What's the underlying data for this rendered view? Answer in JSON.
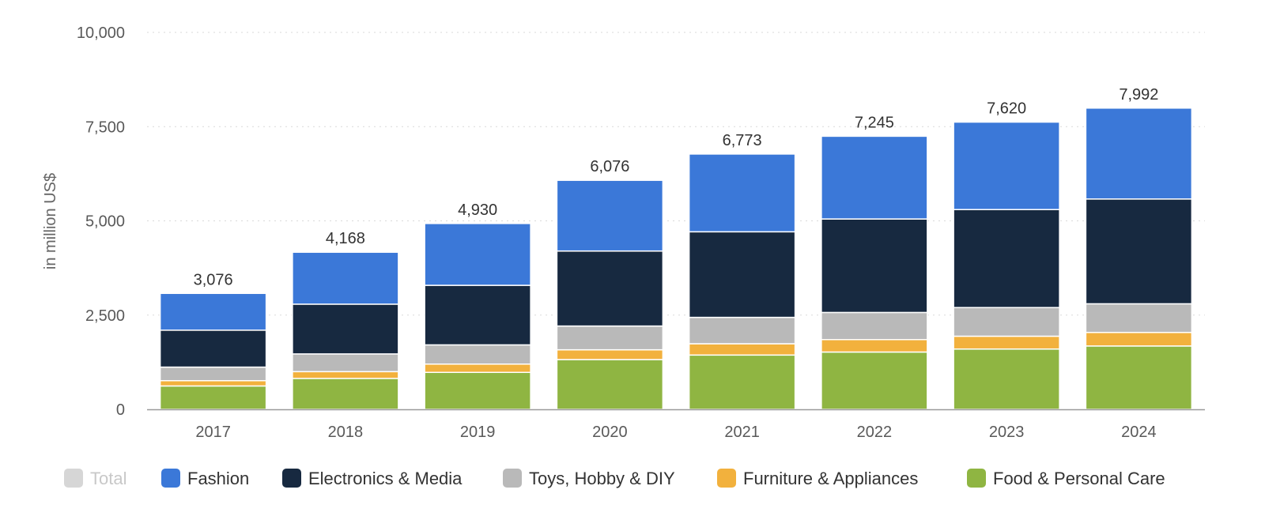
{
  "chart_data": {
    "type": "bar",
    "stacked": true,
    "title": "",
    "xlabel": "",
    "ylabel": "in million US$",
    "ylim": [
      0,
      10000
    ],
    "y_ticks": [
      0,
      2500,
      5000,
      7500,
      10000
    ],
    "y_tick_labels": [
      "0",
      "2,500",
      "5,000",
      "7,500",
      "10,000"
    ],
    "categories": [
      "2017",
      "2018",
      "2019",
      "2020",
      "2021",
      "2022",
      "2023",
      "2024"
    ],
    "series": [
      {
        "name": "Food & Personal Care",
        "color": "#8fb542",
        "values": [
          620,
          820,
          980,
          1320,
          1440,
          1520,
          1600,
          1680
        ]
      },
      {
        "name": "Furniture & Appliances",
        "color": "#f2b13d",
        "values": [
          140,
          180,
          220,
          260,
          300,
          330,
          340,
          360
        ]
      },
      {
        "name": "Toys, Hobby & DIY",
        "color": "#b9b9b9",
        "values": [
          360,
          470,
          510,
          630,
          700,
          720,
          760,
          760
        ]
      },
      {
        "name": "Electronics & Media",
        "color": "#172940",
        "values": [
          980,
          1320,
          1580,
          1990,
          2270,
          2480,
          2600,
          2780
        ]
      },
      {
        "name": "Fashion",
        "color": "#3b78d8",
        "values": [
          976,
          1378,
          1640,
          1876,
          2063,
          2195,
          2320,
          2412
        ]
      }
    ],
    "totals": [
      3076,
      4168,
      4930,
      6076,
      6773,
      7245,
      7620,
      7992
    ],
    "total_labels": [
      "3,076",
      "4,168",
      "4,930",
      "6,076",
      "6,773",
      "7,245",
      "7,620",
      "7,992"
    ],
    "legend": [
      {
        "name": "Total",
        "color": "#d6d6d6",
        "disabled": true
      },
      {
        "name": "Fashion",
        "color": "#3b78d8",
        "disabled": false
      },
      {
        "name": "Electronics & Media",
        "color": "#172940",
        "disabled": false
      },
      {
        "name": "Toys, Hobby & DIY",
        "color": "#b9b9b9",
        "disabled": false
      },
      {
        "name": "Furniture & Appliances",
        "color": "#f2b13d",
        "disabled": false
      },
      {
        "name": "Food & Personal Care",
        "color": "#8fb542",
        "disabled": false
      }
    ],
    "legend_position": "bottom",
    "grid": true
  }
}
